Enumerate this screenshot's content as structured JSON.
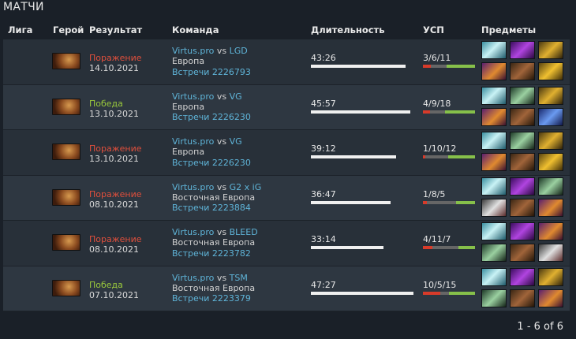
{
  "page": {
    "title": "МАТЧИ"
  },
  "columns": {
    "league": "Лига",
    "hero": "Герой",
    "result": "Результат",
    "team": "Команда",
    "duration": "Длительность",
    "kda": "УСП",
    "items": "Предметы"
  },
  "colors": {
    "loss": "#e04f3c",
    "win": "#9ac93c",
    "link": "#5fb4d8",
    "kill_bar": "#d83b2a",
    "assist_bar": "#86c04a"
  },
  "matches": [
    {
      "result": "Поражение",
      "date": "14.10.2021",
      "team": "Virtus.pro",
      "vs": "vs",
      "opponent": "LGD",
      "region": "Европа",
      "meetings": "Встречи 2226793",
      "duration": "43:26",
      "duration_fraction": 0.92,
      "kda": "3/6/11",
      "kills": 3,
      "deaths": 6,
      "assists": 11,
      "items": [
        "ethereal-blade",
        "dagon",
        "butterfly",
        "gem",
        "boots",
        "hand-of-midas"
      ]
    },
    {
      "result": "Победа",
      "date": "13.10.2021",
      "team": "Virtus.pro",
      "vs": "vs",
      "opponent": "VG",
      "region": "Европа",
      "meetings": "Встречи 2226230",
      "duration": "45:57",
      "duration_fraction": 0.97,
      "kda": "4/9/18",
      "kills": 4,
      "deaths": 9,
      "assists": 18,
      "items": [
        "ethereal-blade",
        "spear",
        "butterfly",
        "gem",
        "boots",
        "aghanim-scepter"
      ]
    },
    {
      "result": "Поражение",
      "date": "13.10.2021",
      "team": "Virtus.pro",
      "vs": "vs",
      "opponent": "VG",
      "region": "Европа",
      "meetings": "Встречи 2226230",
      "duration": "39:12",
      "duration_fraction": 0.83,
      "kda": "1/10/12",
      "kills": 1,
      "deaths": 10,
      "assists": 12,
      "items": [
        "ethereal-blade",
        "spear",
        "butterfly",
        "gem",
        "boots",
        "hand-of-midas"
      ]
    },
    {
      "result": "Поражение",
      "date": "08.10.2021",
      "team": "Virtus.pro",
      "vs": "vs",
      "opponent": "G2 x iG",
      "region": "Восточная Европа",
      "meetings": "Встречи 2223884",
      "duration": "36:47",
      "duration_fraction": 0.78,
      "kda": "1/8/5",
      "kills": 1,
      "deaths": 8,
      "assists": 5,
      "items": [
        "ethereal-blade",
        "dagon",
        "spear",
        "axe",
        "boots",
        "gem"
      ]
    },
    {
      "result": "Поражение",
      "date": "08.10.2021",
      "team": "Virtus.pro",
      "vs": "vs",
      "opponent": "BLEED",
      "region": "Восточная Европа",
      "meetings": "Встречи 2223782",
      "duration": "33:14",
      "duration_fraction": 0.71,
      "kda": "4/11/7",
      "kills": 4,
      "deaths": 11,
      "assists": 7,
      "items": [
        "ethereal-blade",
        "dagon",
        "gem",
        "spear",
        "boots",
        "axe"
      ]
    },
    {
      "result": "Победа",
      "date": "07.10.2021",
      "team": "Virtus.pro",
      "vs": "vs",
      "opponent": "TSM",
      "region": "Восточная Европа",
      "meetings": "Встречи 2223379",
      "duration": "47:27",
      "duration_fraction": 1.0,
      "kda": "10/5/15",
      "kills": 10,
      "deaths": 5,
      "assists": 15,
      "items": [
        "ethereal-blade",
        "dagon",
        "butterfly",
        "spear",
        "boots",
        "gem"
      ]
    }
  ],
  "pagination": {
    "label": "1 - 6 of 6"
  }
}
